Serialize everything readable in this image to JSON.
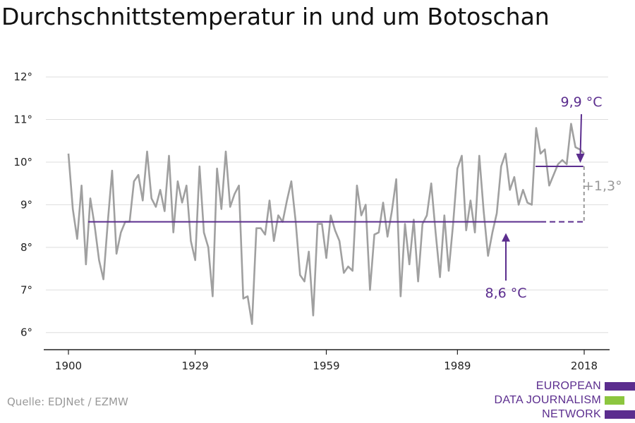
{
  "title": "Durchschnittstemperatur in und um Botoschan",
  "source": "Quelle: EDJNet / EZMW",
  "logo": {
    "lines": [
      "EUROPEAN",
      "DATA JOURNALISM",
      "NETWORK"
    ],
    "colors": [
      "#5b2d8e",
      "#8cc63f",
      "#5b2d8e"
    ]
  },
  "colors": {
    "series": "#a0a0a0",
    "accent": "#5b2d8e",
    "diff": "#999999",
    "grid": "#dddddd",
    "axis": "#222222"
  },
  "chart_data": {
    "type": "line",
    "title": "Durchschnittstemperatur in und um Botoschan",
    "xlabel": "",
    "ylabel": "",
    "xlim": [
      1900,
      2018
    ],
    "ylim": [
      5.3,
      12.3
    ],
    "xticks": [
      1900,
      1929,
      1959,
      1989,
      2018
    ],
    "xtick_labels": [
      "1900",
      "1929",
      "1959",
      "1989",
      "2018"
    ],
    "yticks": [
      6,
      7,
      8,
      9,
      10,
      11,
      12
    ],
    "ytick_labels": [
      "6°",
      "7°",
      "8°",
      "9°",
      "10°",
      "11°",
      "12°"
    ],
    "grid": true,
    "x": [
      1900,
      1901,
      1902,
      1903,
      1904,
      1905,
      1906,
      1907,
      1908,
      1909,
      1910,
      1911,
      1912,
      1913,
      1914,
      1915,
      1916,
      1917,
      1918,
      1919,
      1920,
      1921,
      1922,
      1923,
      1924,
      1925,
      1926,
      1927,
      1928,
      1929,
      1930,
      1931,
      1932,
      1933,
      1934,
      1935,
      1936,
      1937,
      1938,
      1939,
      1940,
      1941,
      1942,
      1943,
      1944,
      1945,
      1946,
      1947,
      1948,
      1949,
      1950,
      1951,
      1952,
      1953,
      1954,
      1955,
      1956,
      1957,
      1958,
      1959,
      1960,
      1961,
      1962,
      1963,
      1964,
      1965,
      1966,
      1967,
      1968,
      1969,
      1970,
      1971,
      1972,
      1973,
      1974,
      1975,
      1976,
      1977,
      1978,
      1979,
      1980,
      1981,
      1982,
      1983,
      1984,
      1985,
      1986,
      1987,
      1988,
      1989,
      1990,
      1991,
      1992,
      1993,
      1994,
      1995,
      1996,
      1997,
      1998,
      1999,
      2000,
      2001,
      2002,
      2003,
      2004,
      2005,
      2006,
      2007,
      2008,
      2009,
      2010,
      2011,
      2012,
      2013,
      2014,
      2015,
      2016,
      2017,
      2018
    ],
    "series": [
      {
        "values": [
          10.2,
          8.9,
          8.2,
          9.45,
          7.6,
          9.15,
          8.5,
          7.7,
          7.25,
          8.6,
          9.8,
          7.85,
          8.35,
          8.6,
          8.6,
          9.55,
          9.7,
          9.1,
          10.25,
          9.15,
          8.95,
          9.35,
          8.85,
          10.15,
          8.35,
          9.55,
          9.05,
          9.45,
          8.15,
          7.7,
          9.9,
          8.35,
          8.0,
          6.85,
          9.85,
          8.9,
          10.25,
          8.95,
          9.25,
          9.45,
          6.8,
          6.85,
          6.2,
          8.45,
          8.45,
          8.3,
          9.1,
          8.15,
          8.75,
          8.6,
          9.1,
          9.55,
          8.6,
          7.35,
          7.2,
          7.9,
          6.4,
          8.55,
          8.55,
          7.75,
          8.75,
          8.4,
          8.15,
          7.4,
          7.55,
          7.45,
          9.45,
          8.75,
          9.0,
          7.0,
          8.3,
          8.35,
          9.05,
          8.25,
          8.85,
          9.6,
          6.85,
          8.55,
          7.6,
          8.65,
          7.2,
          8.55,
          8.75,
          9.5,
          8.35,
          7.3,
          8.75,
          7.45,
          8.55,
          9.85,
          10.15,
          8.4,
          9.1,
          8.35,
          10.15,
          8.85,
          7.8,
          8.35,
          8.8,
          9.9,
          10.2,
          9.35,
          9.65,
          9.0,
          9.35,
          9.05,
          9.0,
          10.8,
          10.2,
          10.3,
          9.45,
          9.7,
          9.95,
          10.05,
          9.95,
          10.9,
          10.35,
          10.3,
          10.2
        ]
      }
    ],
    "annotations": [
      {
        "label": "8,6 °C",
        "value": 8.6,
        "x_range": [
          1900,
          2018
        ]
      },
      {
        "label": "9,9 °C",
        "value": 9.9,
        "x_range": [
          2008,
          2018
        ]
      },
      {
        "label": "+1,3°",
        "from": 8.6,
        "to": 9.9
      }
    ]
  }
}
